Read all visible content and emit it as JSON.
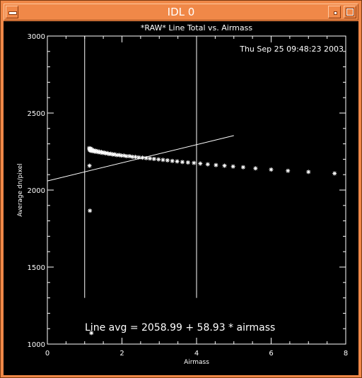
{
  "window": {
    "title": "IDL 0"
  },
  "icons": {
    "menu": "window-menu-icon",
    "minimize": "minimize-icon",
    "maximize": "maximize-icon"
  },
  "colors": {
    "frame": "#f08848",
    "plot_background": "#000000",
    "plot_foreground": "#ffffff"
  },
  "chart_data": {
    "type": "scatter",
    "title": "*RAW* Line Total vs. Airmass",
    "timestamp": "Thu Sep 25 09:48:23 2003",
    "xlabel": "Airmass",
    "ylabel": "Average dn/pixel",
    "xlim": [
      0,
      8
    ],
    "ylim": [
      1000,
      3000
    ],
    "x_ticks": [
      "0",
      "2",
      "4",
      "6",
      "8"
    ],
    "y_ticks": [
      "1000",
      "1500",
      "2000",
      "2500",
      "3000"
    ],
    "annotation": "Line avg = 2058.99 + 58.93 * airmass",
    "fit": {
      "intercept": 2058.99,
      "slope": 58.93,
      "x_range": [
        0,
        5
      ]
    },
    "vertical_lines": [
      1.0,
      4.0
    ],
    "vertical_line_y_range": [
      1300,
      3000
    ],
    "grid": false,
    "points": [
      [
        1.12,
        2272
      ],
      [
        1.13,
        2262
      ],
      [
        1.14,
        2266
      ],
      [
        1.15,
        2258
      ],
      [
        1.16,
        2270
      ],
      [
        1.17,
        2255
      ],
      [
        1.18,
        2265
      ],
      [
        1.2,
        2260
      ],
      [
        1.22,
        2252
      ],
      [
        1.24,
        2258
      ],
      [
        1.26,
        2250
      ],
      [
        1.28,
        2256
      ],
      [
        1.3,
        2249
      ],
      [
        1.33,
        2253
      ],
      [
        1.36,
        2246
      ],
      [
        1.39,
        2250
      ],
      [
        1.42,
        2244
      ],
      [
        1.45,
        2247
      ],
      [
        1.48,
        2241
      ],
      [
        1.52,
        2244
      ],
      [
        1.56,
        2238
      ],
      [
        1.6,
        2240
      ],
      [
        1.65,
        2234
      ],
      [
        1.7,
        2236
      ],
      [
        1.75,
        2231
      ],
      [
        1.8,
        2232
      ],
      [
        1.86,
        2227
      ],
      [
        1.92,
        2228
      ],
      [
        1.98,
        2224
      ],
      [
        2.05,
        2224
      ],
      [
        2.12,
        2220
      ],
      [
        2.2,
        2220
      ],
      [
        2.28,
        2216
      ],
      [
        2.36,
        2215
      ],
      [
        2.45,
        2212
      ],
      [
        2.55,
        2210
      ],
      [
        2.65,
        2207
      ],
      [
        2.75,
        2205
      ],
      [
        2.86,
        2202
      ],
      [
        2.98,
        2199
      ],
      [
        3.1,
        2196
      ],
      [
        3.22,
        2193
      ],
      [
        3.35,
        2189
      ],
      [
        3.48,
        2186
      ],
      [
        3.62,
        2182
      ],
      [
        3.77,
        2179
      ],
      [
        3.93,
        2176
      ],
      [
        4.1,
        2172
      ],
      [
        4.3,
        2167
      ],
      [
        4.52,
        2162
      ],
      [
        4.75,
        2158
      ],
      [
        4.98,
        2153
      ],
      [
        5.25,
        2148
      ],
      [
        5.58,
        2141
      ],
      [
        6.0,
        2133
      ],
      [
        6.45,
        2125
      ],
      [
        7.0,
        2118
      ],
      [
        7.7,
        2108
      ],
      [
        1.13,
        2158
      ],
      [
        1.14,
        1866
      ],
      [
        1.18,
        1072
      ]
    ]
  }
}
